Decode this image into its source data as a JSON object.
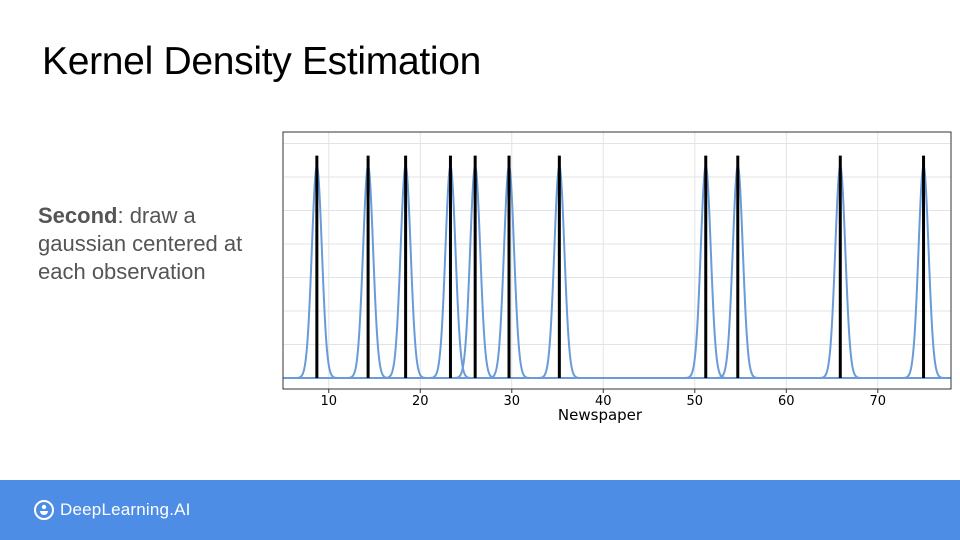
{
  "slide": {
    "title": "Kernel Density Estimation",
    "body_bold": "Second",
    "body_rest": ": draw a gaussian centered at each observation"
  },
  "brand": {
    "name": "DeepLearning.AI",
    "logo_icon": "deeplearning-logo-icon"
  },
  "colors": {
    "footer": "#4e8de6",
    "curve": "#6a9bd8",
    "observation_line": "#000000",
    "baseline": "#6a9bd8"
  },
  "chart_data": {
    "type": "line",
    "xlabel": "Newspaper",
    "ylabel": "",
    "xlim": [
      5,
      78
    ],
    "ylim": [
      0,
      1.1
    ],
    "x_ticks": [
      10,
      20,
      30,
      40,
      50,
      60,
      70
    ],
    "grid": true,
    "observations": [
      8.7,
      14.3,
      18.4,
      23.3,
      26.0,
      29.7,
      35.2,
      51.2,
      54.7,
      65.9,
      75.0
    ],
    "kernel": "gaussian",
    "kernel_peak": 1.0,
    "kernel_sigma": 0.55,
    "observation_line_height": 1.05
  }
}
